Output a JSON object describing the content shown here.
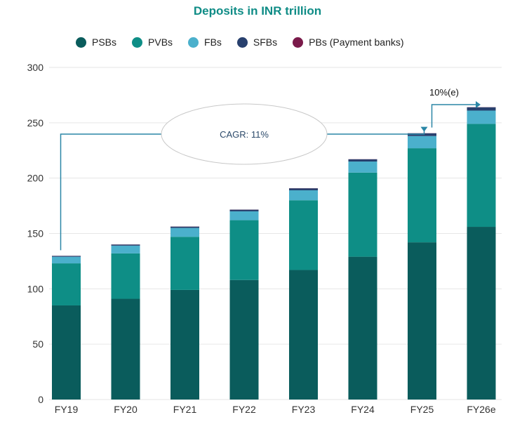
{
  "chart_data": {
    "type": "bar",
    "stacked": true,
    "title": "Deposits in INR trillion",
    "categories": [
      "FY19",
      "FY20",
      "FY21",
      "FY22",
      "FY23",
      "FY24",
      "FY25",
      "FY26e"
    ],
    "ylim": [
      0,
      300
    ],
    "yticks": [
      "0",
      "50",
      "100",
      "150",
      "200",
      "250",
      "300"
    ],
    "grid": true,
    "legend_position": "top",
    "series": [
      {
        "name": "PSBs",
        "color": "#0a5c5c",
        "values": [
          85,
          91,
          99,
          108,
          117,
          129,
          142,
          156
        ]
      },
      {
        "name": "PVBs",
        "color": "#0e8e86",
        "values": [
          38,
          41,
          48,
          54,
          63,
          76,
          85,
          93
        ]
      },
      {
        "name": "FBs",
        "color": "#4bb0cc",
        "values": [
          6,
          7,
          8,
          8,
          9,
          10,
          11,
          12
        ]
      },
      {
        "name": "SFBs",
        "color": "#28406e",
        "values": [
          0.7,
          1,
          1.2,
          1.5,
          1.8,
          2,
          2.5,
          3
        ]
      },
      {
        "name": "PBs (Payment banks)",
        "color": "#7a1a4a",
        "values": [
          0.1,
          0.1,
          0.1,
          0.1,
          0.1,
          0.1,
          0.1,
          0.1
        ]
      }
    ],
    "annotations": {
      "cagr": "CAGR: 11%",
      "growth": "10%(e)"
    }
  }
}
